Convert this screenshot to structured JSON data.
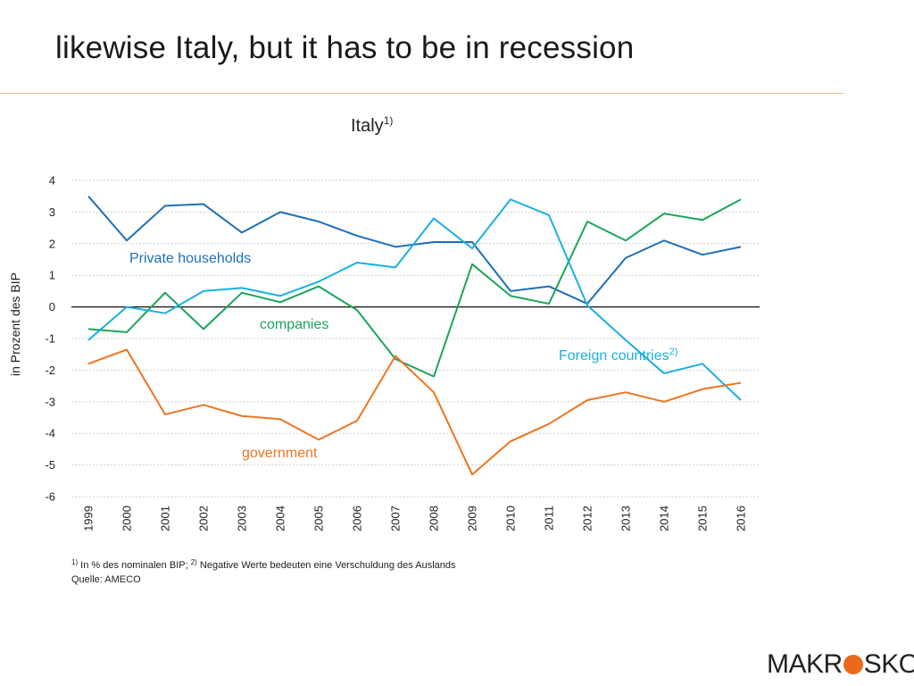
{
  "slide": {
    "title": "likewise Italy, but it has to be in recession"
  },
  "colors": {
    "private": "#1f6fb5",
    "companies": "#1aa55a",
    "foreign": "#1ab0e0",
    "government": "#ee7420",
    "accent_rule": "#f0b48a",
    "grid": "#d0d0d0"
  },
  "chart_data": {
    "type": "line",
    "title": "Italy",
    "title_footnote": "1)",
    "ylabel": "in Prozent des BIP",
    "xlabel": "",
    "ylim": [
      -6,
      4
    ],
    "yticks": [
      "4",
      "3",
      "2",
      "1",
      "0",
      "-1",
      "-2",
      "-3",
      "-4",
      "-5",
      "-6"
    ],
    "x": [
      "1999",
      "2000",
      "2001",
      "2002",
      "2003",
      "2004",
      "2005",
      "2006",
      "2007",
      "2008",
      "2009",
      "2010",
      "2011",
      "2012",
      "2013",
      "2014",
      "2015",
      "2016"
    ],
    "series": [
      {
        "name": "Private households",
        "label": "Private households",
        "label_sup": "",
        "color": "#1f6fb5",
        "values": [
          3.5,
          2.1,
          3.2,
          3.25,
          2.35,
          3.0,
          2.7,
          2.25,
          1.9,
          2.05,
          2.05,
          0.5,
          0.65,
          0.1,
          1.55,
          2.1,
          1.65,
          1.9
        ]
      },
      {
        "name": "companies",
        "label": "companies",
        "label_sup": "",
        "color": "#1aa55a",
        "values": [
          -0.7,
          -0.8,
          0.45,
          -0.7,
          0.45,
          0.15,
          0.65,
          -0.1,
          -1.65,
          -2.2,
          1.35,
          0.35,
          0.1,
          2.7,
          2.1,
          2.95,
          2.75,
          3.4
        ]
      },
      {
        "name": "Foreign countries",
        "label": "Foreign countries",
        "label_sup": "2)",
        "color": "#1ab0e0",
        "values": [
          -1.05,
          0.0,
          -0.2,
          0.5,
          0.6,
          0.35,
          0.8,
          1.4,
          1.25,
          2.8,
          1.85,
          3.4,
          2.9,
          0.05,
          -1.05,
          -2.1,
          -1.8,
          -2.95
        ]
      },
      {
        "name": "government",
        "label": "government",
        "label_sup": "",
        "color": "#ee7420",
        "values": [
          -1.8,
          -1.35,
          -3.4,
          -3.1,
          -3.45,
          -3.55,
          -4.2,
          -3.6,
          -1.55,
          -2.7,
          -5.3,
          -4.25,
          -3.7,
          -2.95,
          -2.7,
          -3.0,
          -2.6,
          -2.4
        ]
      }
    ]
  },
  "footnote": {
    "line1_sup1": "1)",
    "line1_part1": " In % des nominalen BIP; ",
    "line1_sup2": "2)",
    "line1_part2": " Negative Werte bedeuten eine Verschuldung des Auslands",
    "line2": "Quelle: AMECO"
  },
  "logo": {
    "left_text": "MAKR",
    "right_text": "SKOP"
  }
}
